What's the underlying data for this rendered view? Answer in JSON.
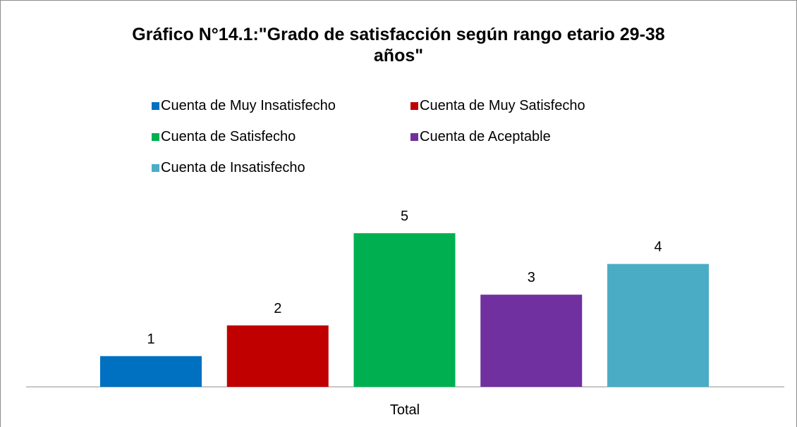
{
  "chart_data": {
    "type": "bar",
    "title": "Gráfico N°14.1:\"Grado de satisfacción según rango etario 29-38 años\"",
    "categories": [
      "Total"
    ],
    "series": [
      {
        "name": "Cuenta de Muy Insatisfecho",
        "color": "#0070c0",
        "values": [
          1
        ]
      },
      {
        "name": "Cuenta de Muy Satisfecho",
        "color": "#c00000",
        "values": [
          2
        ]
      },
      {
        "name": "Cuenta de Satisfecho",
        "color": "#00b050",
        "values": [
          5
        ]
      },
      {
        "name": "Cuenta de Aceptable",
        "color": "#7030a0",
        "values": [
          3
        ]
      },
      {
        "name": "Cuenta de Insatisfecho",
        "color": "#4bacc6",
        "values": [
          4
        ]
      }
    ],
    "legend": "top"
  }
}
